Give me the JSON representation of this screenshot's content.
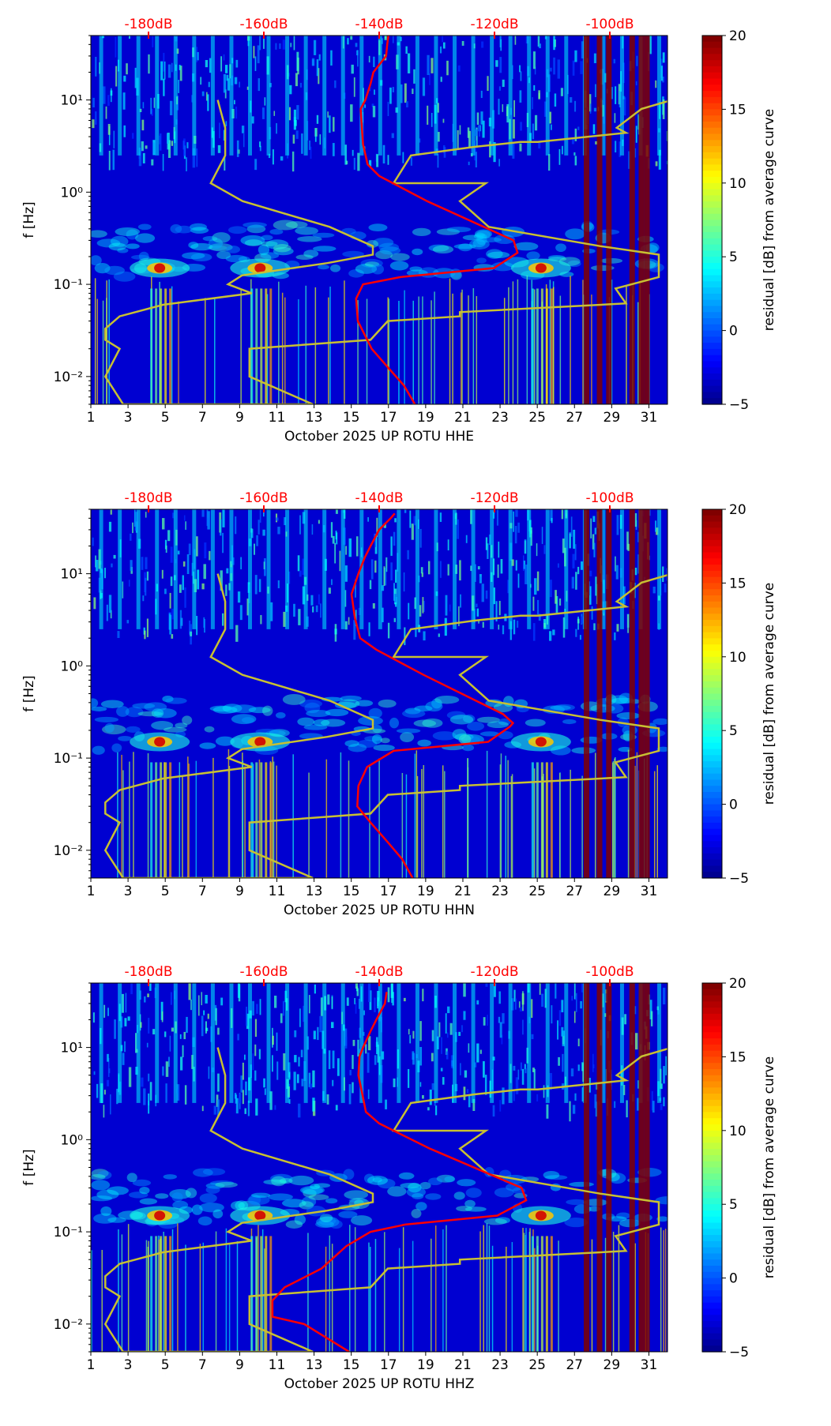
{
  "colorbar": {
    "label": "residual [dB] from average curve",
    "min": -5,
    "max": 20,
    "ticks": [
      "20",
      "15",
      "10",
      "5",
      "0",
      "−5"
    ],
    "tick_values": [
      20,
      15,
      10,
      5,
      0,
      -5
    ],
    "colormap": "jet"
  },
  "chart_data": [
    {
      "type": "heatmap",
      "title": "",
      "xlabel": "October 2025 UP ROTU  HHE",
      "ylabel": "f [Hz]",
      "x_ticks": [
        "1",
        "3",
        "5",
        "7",
        "9",
        "11",
        "13",
        "15",
        "17",
        "19",
        "21",
        "23",
        "25",
        "27",
        "29",
        "31"
      ],
      "x_tick_values": [
        1,
        3,
        5,
        7,
        9,
        11,
        13,
        15,
        17,
        19,
        21,
        23,
        25,
        27,
        29,
        31
      ],
      "xlim": [
        1,
        32
      ],
      "ylim": [
        0.005,
        50
      ],
      "y_scale": "log",
      "y_ticks": [
        "10⁻²",
        "10⁻¹",
        "10⁰",
        "10¹"
      ],
      "y_tick_values": [
        0.01,
        0.1,
        1,
        10
      ],
      "top_axis": {
        "ticks": [
          "-180dB",
          "-160dB",
          "-140dB",
          "-120dB",
          "-100dB"
        ],
        "tick_values": [
          -180,
          -160,
          -140,
          -120,
          -100
        ],
        "range": [
          -190,
          -90
        ],
        "color": "#ff0000"
      },
      "noise_models": {
        "x": [
          -168,
          -166.7,
          -166.7,
          -169.2,
          -163.7,
          -148.6,
          -141.1,
          -141.1,
          -149,
          -163.8,
          -166.2,
          -162.1,
          -177.5,
          -185,
          -187.5,
          -187.5,
          -185,
          -187.5,
          -184.4,
          -151.5,
          -162.5,
          -162.5,
          -141.5,
          -138.5,
          -126,
          -126,
          -97.2,
          -99,
          -91.5,
          -91.5,
          -101.7,
          -121,
          -126,
          -121.5,
          -137.5,
          -137.5,
          -134.5,
          -123.5,
          -115.5,
          -112.5,
          -97.2,
          -98.8,
          -98.8,
          -94.5,
          -89.2
        ],
        "freq": [
          10,
          5,
          2.5,
          1.25,
          0.8,
          0.42,
          0.26,
          0.21,
          0.17,
          0.125,
          0.1,
          0.08,
          0.06,
          0.045,
          0.033,
          0.025,
          0.02,
          0.01,
          0.005,
          0.005,
          0.01,
          0.02,
          0.025,
          0.04,
          0.045,
          0.05,
          0.062,
          0.09,
          0.12,
          0.21,
          0.26,
          0.42,
          0.8,
          1.25,
          1.25,
          1.25,
          2.5,
          3.1,
          3.5,
          3.5,
          4.4,
          5,
          5,
          8,
          10
        ],
        "color": "#c8c032"
      },
      "average_curve": {
        "db": [
          -138.4,
          -138.6,
          -138.8,
          -141.0,
          -141.5,
          -142.4,
          -143.2,
          -143.0,
          -142.8,
          -142.0,
          -140.0,
          -131.7,
          -116.7,
          -116.0,
          -120.1,
          -136.3,
          -142.8,
          -144.0,
          -143.7,
          -141.3,
          -138.2,
          -135.7,
          -133.8
        ],
        "freq": [
          50,
          40,
          30,
          20,
          15,
          10,
          8,
          5,
          3.3,
          2.0,
          1.5,
          0.8,
          0.3,
          0.22,
          0.15,
          0.12,
          0.1,
          0.07,
          0.04,
          0.02,
          0.012,
          0.008,
          0.005
        ],
        "color": "#ff0000"
      },
      "events_days": [
        4.7,
        10.1,
        25.2
      ]
    },
    {
      "type": "heatmap",
      "title": "",
      "xlabel": "October 2025 UP ROTU  HHN",
      "ylabel": "f [Hz]",
      "x_ticks": [
        "1",
        "3",
        "5",
        "7",
        "9",
        "11",
        "13",
        "15",
        "17",
        "19",
        "21",
        "23",
        "25",
        "27",
        "29",
        "31"
      ],
      "x_tick_values": [
        1,
        3,
        5,
        7,
        9,
        11,
        13,
        15,
        17,
        19,
        21,
        23,
        25,
        27,
        29,
        31
      ],
      "xlim": [
        1,
        32
      ],
      "ylim": [
        0.005,
        50
      ],
      "y_scale": "log",
      "y_ticks": [
        "10⁻²",
        "10⁻¹",
        "10⁰",
        "10¹"
      ],
      "y_tick_values": [
        0.01,
        0.1,
        1,
        10
      ],
      "top_axis": {
        "ticks": [
          "-180dB",
          "-160dB",
          "-140dB",
          "-120dB",
          "-100dB"
        ],
        "tick_values": [
          -180,
          -160,
          -140,
          -120,
          -100
        ],
        "range": [
          -190,
          -90
        ],
        "color": "#ff0000"
      },
      "noise_models": {
        "x": [
          -168,
          -166.7,
          -166.7,
          -169.2,
          -163.7,
          -148.6,
          -141.1,
          -141.1,
          -149,
          -163.8,
          -166.2,
          -162.1,
          -177.5,
          -185,
          -187.5,
          -187.5,
          -185,
          -187.5,
          -184.4,
          -151.5,
          -162.5,
          -162.5,
          -141.5,
          -138.5,
          -126,
          -126,
          -97.2,
          -99,
          -91.5,
          -91.5,
          -101.7,
          -121,
          -126,
          -121.5,
          -137.5,
          -137.5,
          -134.5,
          -123.5,
          -115.5,
          -112.5,
          -97.2,
          -98.8,
          -98.8,
          -94.5,
          -89.2
        ],
        "freq": [
          10,
          5,
          2.5,
          1.25,
          0.8,
          0.42,
          0.26,
          0.21,
          0.17,
          0.125,
          0.1,
          0.08,
          0.06,
          0.045,
          0.033,
          0.025,
          0.02,
          0.01,
          0.005,
          0.005,
          0.01,
          0.02,
          0.025,
          0.04,
          0.045,
          0.05,
          0.062,
          0.09,
          0.12,
          0.21,
          0.26,
          0.42,
          0.8,
          1.25,
          1.25,
          1.25,
          2.5,
          3.1,
          3.5,
          3.5,
          4.4,
          5,
          5,
          8,
          10
        ],
        "color": "#c8c032"
      },
      "average_curve": {
        "db": [
          -137.3,
          -138.0,
          -140.0,
          -141.5,
          -142.5,
          -143.6,
          -144.8,
          -144.2,
          -143.3,
          -140.5,
          -132.3,
          -118.5,
          -116.8,
          -117.3,
          -121.1,
          -137.5,
          -142.1,
          -143.6,
          -143.8,
          -141.5,
          -138.4,
          -136.0,
          -134.2
        ],
        "freq": [
          45,
          40,
          30,
          20,
          15,
          10,
          6,
          3.3,
          2.0,
          1.5,
          0.8,
          0.3,
          0.24,
          0.22,
          0.15,
          0.12,
          0.08,
          0.05,
          0.03,
          0.02,
          0.012,
          0.008,
          0.005
        ],
        "color": "#ff0000"
      },
      "events_days": [
        4.7,
        10.1,
        25.2
      ]
    },
    {
      "type": "heatmap",
      "title": "",
      "xlabel": "October 2025 UP ROTU  HHZ",
      "ylabel": "f [Hz]",
      "x_ticks": [
        "1",
        "3",
        "5",
        "7",
        "9",
        "11",
        "13",
        "15",
        "17",
        "19",
        "21",
        "23",
        "25",
        "27",
        "29",
        "31"
      ],
      "x_tick_values": [
        1,
        3,
        5,
        7,
        9,
        11,
        13,
        15,
        17,
        19,
        21,
        23,
        25,
        27,
        29,
        31
      ],
      "xlim": [
        1,
        32
      ],
      "ylim": [
        0.005,
        50
      ],
      "y_scale": "log",
      "y_ticks": [
        "10⁻²",
        "10⁻¹",
        "10⁰",
        "10¹"
      ],
      "y_tick_values": [
        0.01,
        0.1,
        1,
        10
      ],
      "top_axis": {
        "ticks": [
          "-180dB",
          "-160dB",
          "-140dB",
          "-120dB",
          "-100dB"
        ],
        "tick_values": [
          -180,
          -160,
          -140,
          -120,
          -100
        ],
        "range": [
          -190,
          -90
        ],
        "color": "#ff0000"
      },
      "noise_models": {
        "x": [
          -168,
          -166.7,
          -166.7,
          -169.2,
          -163.7,
          -148.6,
          -141.1,
          -141.1,
          -149,
          -163.8,
          -166.2,
          -162.1,
          -177.5,
          -185,
          -187.5,
          -187.5,
          -185,
          -187.5,
          -184.4,
          -151.5,
          -162.5,
          -162.5,
          -141.5,
          -138.5,
          -126,
          -126,
          -97.2,
          -99,
          -91.5,
          -91.5,
          -101.7,
          -121,
          -126,
          -121.5,
          -137.5,
          -137.5,
          -134.5,
          -123.5,
          -115.5,
          -112.5,
          -97.2,
          -98.8,
          -98.8,
          -94.5,
          -89.2
        ],
        "freq": [
          10,
          5,
          2.5,
          1.25,
          0.8,
          0.42,
          0.26,
          0.21,
          0.17,
          0.125,
          0.1,
          0.08,
          0.06,
          0.045,
          0.033,
          0.025,
          0.02,
          0.01,
          0.005,
          0.005,
          0.01,
          0.02,
          0.025,
          0.04,
          0.045,
          0.05,
          0.062,
          0.09,
          0.12,
          0.21,
          0.26,
          0.42,
          0.8,
          1.25,
          1.25,
          1.25,
          2.5,
          3.1,
          3.5,
          3.5,
          4.4,
          5,
          5,
          8,
          10
        ],
        "color": "#c8c032"
      },
      "average_curve": {
        "db": [
          -138.7,
          -139.0,
          -140.5,
          -141.5,
          -142.8,
          -143.4,
          -143.6,
          -143.0,
          -142.3,
          -140.0,
          -131.2,
          -115.3,
          -114.5,
          -119.5,
          -135.5,
          -141.5,
          -145.7,
          -150.0,
          -156.4,
          -158.5,
          -158.5,
          -153.0,
          -145.2
        ],
        "freq": [
          40,
          30,
          20,
          15,
          10,
          8,
          5,
          3.3,
          2.0,
          1.5,
          0.8,
          0.3,
          0.22,
          0.15,
          0.12,
          0.1,
          0.07,
          0.04,
          0.025,
          0.018,
          0.012,
          0.01,
          0.005
        ],
        "color": "#ff0000"
      },
      "events_days": [
        4.7,
        10.1,
        25.2
      ]
    }
  ]
}
